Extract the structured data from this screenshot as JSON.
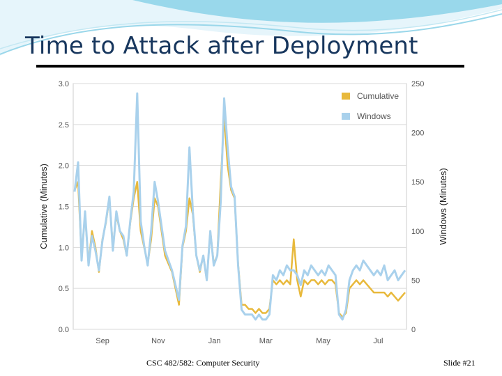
{
  "slide": {
    "title": "Time to Attack after Deployment",
    "footer_course": "CSC 482/582: Computer Security",
    "footer_slide": "Slide #21"
  },
  "colors": {
    "cumulative": "#e8b93c",
    "windows": "#a9d1ec",
    "title": "#17365d",
    "banner_light": "#e6f5fb",
    "banner_accent": "#7fcde5"
  },
  "chart_data": {
    "type": "line",
    "title": "",
    "xlabel": "",
    "ylabel": "Cumulative (Minutes)",
    "y2label": "Windows (Minutes)",
    "x_ticks": [
      "Sep",
      "Nov",
      "Jan",
      "Mar",
      "May",
      "Jul"
    ],
    "ylim": [
      0,
      3.0
    ],
    "y_ticks": [
      "0.0",
      "0.5",
      "1.0",
      "1.5",
      "2.0",
      "2.5",
      "3.0"
    ],
    "y2lim": [
      0,
      250
    ],
    "y2_ticks": [
      "0",
      "50",
      "100",
      "150",
      "200",
      "250"
    ],
    "grid": true,
    "legend_position": "top-right",
    "legend": [
      "Cumulative",
      "Windows"
    ],
    "series": [
      {
        "name": "Cumulative",
        "axis": "left",
        "values": [
          1.7,
          1.8,
          0.9,
          1.4,
          0.8,
          1.2,
          1.0,
          0.7,
          1.1,
          1.3,
          1.6,
          1.0,
          1.4,
          1.2,
          1.1,
          0.9,
          1.3,
          1.6,
          1.8,
          1.2,
          1.0,
          0.8,
          1.1,
          1.6,
          1.5,
          1.2,
          0.9,
          0.8,
          0.7,
          0.5,
          0.3,
          1.0,
          1.2,
          1.6,
          1.4,
          0.9,
          0.7,
          0.9,
          0.6,
          1.2,
          0.8,
          0.9,
          1.8,
          2.6,
          2.0,
          1.7,
          1.6,
          0.8,
          0.3,
          0.3,
          0.25,
          0.25,
          0.2,
          0.25,
          0.2,
          0.2,
          0.25,
          0.6,
          0.55,
          0.6,
          0.55,
          0.6,
          0.55,
          1.1,
          0.6,
          0.4,
          0.6,
          0.55,
          0.6,
          0.6,
          0.55,
          0.6,
          0.55,
          0.6,
          0.6,
          0.55,
          0.2,
          0.15,
          0.2,
          0.5,
          0.55,
          0.6,
          0.55,
          0.6,
          0.55,
          0.5,
          0.45,
          0.45,
          0.45,
          0.45,
          0.4,
          0.45,
          0.4,
          0.35,
          0.4,
          0.45
        ]
      },
      {
        "name": "Windows",
        "axis": "right",
        "values": [
          140,
          170,
          70,
          120,
          65,
          95,
          80,
          60,
          90,
          110,
          135,
          80,
          120,
          100,
          95,
          75,
          110,
          140,
          240,
          110,
          85,
          65,
          100,
          150,
          130,
          105,
          80,
          70,
          60,
          45,
          30,
          85,
          105,
          185,
          120,
          75,
          60,
          75,
          50,
          100,
          65,
          75,
          130,
          235,
          185,
          145,
          135,
          65,
          20,
          15,
          15,
          15,
          10,
          15,
          10,
          10,
          15,
          55,
          50,
          60,
          55,
          65,
          60,
          60,
          55,
          45,
          60,
          55,
          65,
          60,
          55,
          60,
          55,
          65,
          60,
          55,
          15,
          10,
          20,
          50,
          60,
          65,
          60,
          70,
          65,
          60,
          55,
          60,
          55,
          65,
          50,
          55,
          60,
          50,
          55,
          60
        ]
      }
    ]
  }
}
